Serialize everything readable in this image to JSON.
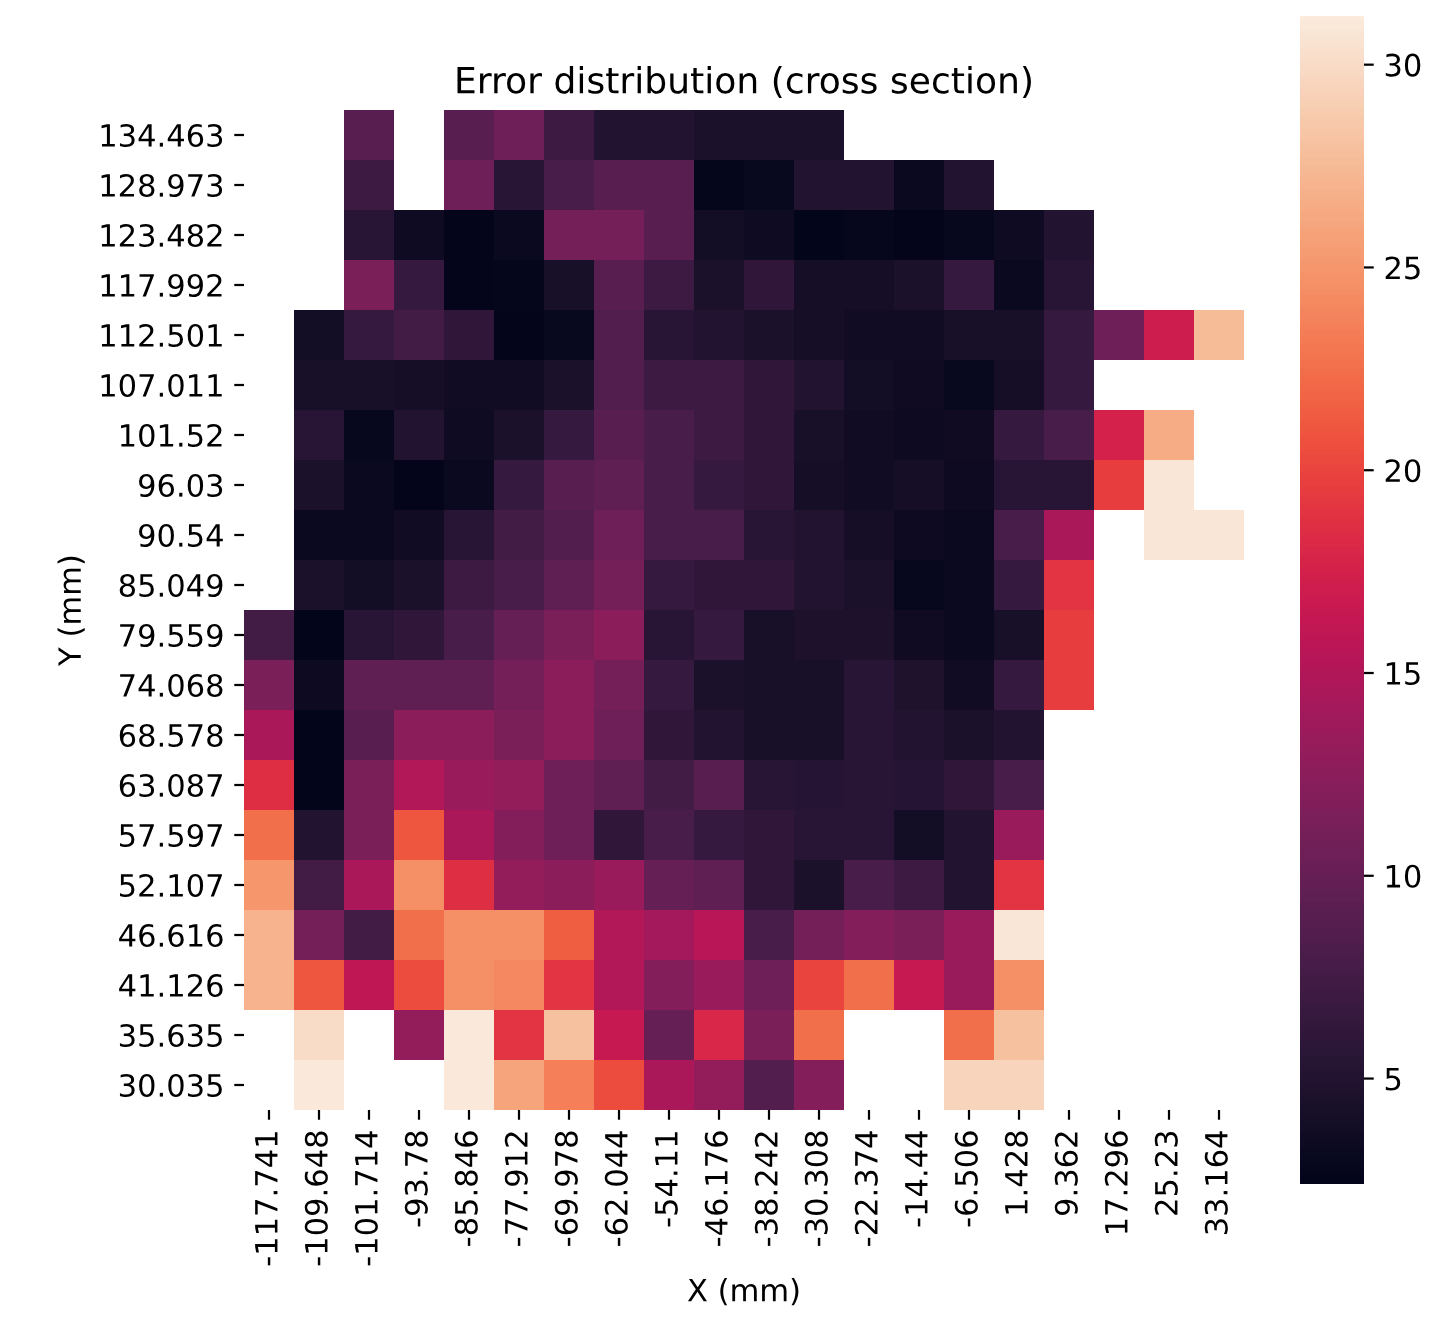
{
  "chart_data": {
    "type": "heatmap",
    "title": "Error distribution (cross section)",
    "xlabel": "X (mm)",
    "ylabel": "Y (mm)",
    "categories": [
      "-117.741",
      "-109.648",
      "-101.714",
      "-93.78",
      "-85.846",
      "-77.912",
      "-69.978",
      "-62.044",
      "-54.11",
      "-46.176",
      "-38.242",
      "-30.308",
      "-22.374",
      "-14.44",
      "-6.506",
      "1.428",
      "9.362",
      "17.296",
      "25.23",
      "33.164"
    ],
    "y_categories": [
      "134.463",
      "128.973",
      "123.482",
      "117.992",
      "112.501",
      "107.011",
      "101.52",
      "96.03",
      "90.54",
      "85.049",
      "79.559",
      "74.068",
      "68.578",
      "63.087",
      "57.597",
      "52.107",
      "46.616",
      "41.126",
      "35.635",
      "30.035"
    ],
    "cells": [
      [
        null,
        null,
        9,
        null,
        9,
        10.5,
        7,
        5,
        5,
        4.5,
        4.5,
        4.5,
        null,
        null,
        null,
        null,
        null,
        null,
        null,
        null
      ],
      [
        null,
        null,
        7,
        null,
        10.5,
        5.5,
        8,
        9,
        9,
        2.7,
        3,
        5,
        5,
        3.2,
        5,
        null,
        null,
        null,
        null,
        null
      ],
      [
        null,
        null,
        5.5,
        3.5,
        2.6,
        3.3,
        11,
        11,
        9,
        3.8,
        3.5,
        2.5,
        2.8,
        2.6,
        2.9,
        3.5,
        5,
        null,
        null,
        null
      ],
      [
        null,
        null,
        11.5,
        6.5,
        2.6,
        2.7,
        4.2,
        9,
        7,
        4.5,
        6,
        4,
        4,
        4.5,
        6.5,
        3.3,
        5.5,
        null,
        null,
        null
      ],
      [
        null,
        3.8,
        6.5,
        7.5,
        6,
        2.6,
        3,
        8.5,
        5.5,
        5,
        4.5,
        4,
        3.7,
        3.7,
        4.2,
        4.2,
        6.5,
        10.5,
        17,
        27.5
      ],
      [
        null,
        4.2,
        4.2,
        4,
        3.7,
        3.7,
        4.5,
        8.5,
        7,
        7,
        6,
        5,
        3.8,
        3.6,
        3,
        4,
        6.5,
        null,
        null,
        null
      ],
      [
        null,
        5.5,
        2.9,
        5,
        3.5,
        4.5,
        6.5,
        9,
        8,
        7,
        6,
        4.2,
        3.7,
        3.4,
        3.6,
        6.5,
        8,
        17.5,
        26.5,
        null
      ],
      [
        null,
        4.5,
        3.3,
        2.6,
        3.3,
        6.5,
        9,
        9.5,
        8,
        6.5,
        6,
        4,
        3.7,
        4,
        3.4,
        5.5,
        5.5,
        19.5,
        30.8,
        null
      ],
      [
        null,
        3.2,
        3.3,
        3.7,
        5.5,
        7.5,
        8.5,
        10.5,
        8,
        8,
        5.5,
        5,
        4,
        3.4,
        3.3,
        8,
        14.5,
        null,
        30.8,
        30.8
      ],
      [
        null,
        4.5,
        3.8,
        4.5,
        7,
        8,
        9.5,
        11,
        6.5,
        6,
        6,
        5,
        4.5,
        2.9,
        3.2,
        6.5,
        19,
        null,
        null,
        null
      ],
      [
        7.5,
        2.5,
        5.5,
        6,
        8,
        10,
        11.5,
        12.5,
        5.5,
        6.5,
        4.2,
        4.6,
        4.6,
        3.6,
        3.2,
        4.2,
        19.5,
        null,
        null,
        null
      ],
      [
        11.5,
        3.4,
        9.5,
        9.5,
        9.5,
        11,
        12.5,
        11,
        6.5,
        4.5,
        4.2,
        4.2,
        5.5,
        4.7,
        3.7,
        6.5,
        19.5,
        null,
        null,
        null
      ],
      [
        14.5,
        2.5,
        9,
        12.5,
        12.5,
        11.5,
        12.5,
        10.5,
        6,
        5,
        4.2,
        4.3,
        5.5,
        5,
        4.5,
        5,
        null,
        null,
        null,
        null
      ],
      [
        18.5,
        2.5,
        11.5,
        15,
        13.5,
        13,
        10.5,
        9.5,
        7.5,
        9,
        5.5,
        5.3,
        5.5,
        5.3,
        6,
        8,
        null,
        null,
        null,
        null
      ],
      [
        22.5,
        5,
        11.5,
        21,
        14.5,
        12,
        10.5,
        6,
        8,
        6.5,
        6,
        5.5,
        5.5,
        3.8,
        5,
        13.5,
        null,
        null,
        null,
        null
      ],
      [
        25,
        7.5,
        14.5,
        24.5,
        18.5,
        13,
        12.5,
        13.5,
        10,
        9.5,
        6,
        4.5,
        8,
        7,
        5,
        19,
        null,
        null,
        null,
        null
      ],
      [
        27,
        11,
        7.5,
        22.5,
        24.5,
        24.5,
        21.5,
        15,
        14,
        15.5,
        8,
        11,
        12,
        11.5,
        13.5,
        30.8,
        null,
        null,
        null,
        null
      ],
      [
        27,
        21,
        16,
        20.5,
        24.5,
        24,
        19,
        15,
        12,
        13.5,
        10.5,
        20,
        22.5,
        16.5,
        13.5,
        24.5,
        null,
        null,
        null,
        null
      ],
      [
        null,
        30,
        null,
        13,
        31,
        19,
        28,
        16.5,
        10,
        18,
        11.5,
        22.5,
        null,
        null,
        22.5,
        28,
        null,
        null,
        null,
        null
      ],
      [
        null,
        31,
        null,
        null,
        31,
        26,
        23.5,
        20.5,
        14.5,
        13,
        8.5,
        12,
        null,
        null,
        29.5,
        29.5,
        null,
        null,
        null,
        null
      ]
    ],
    "clim": [
      2.4,
      31.2
    ],
    "cticks": [
      5,
      10,
      15,
      20,
      25,
      30
    ]
  }
}
